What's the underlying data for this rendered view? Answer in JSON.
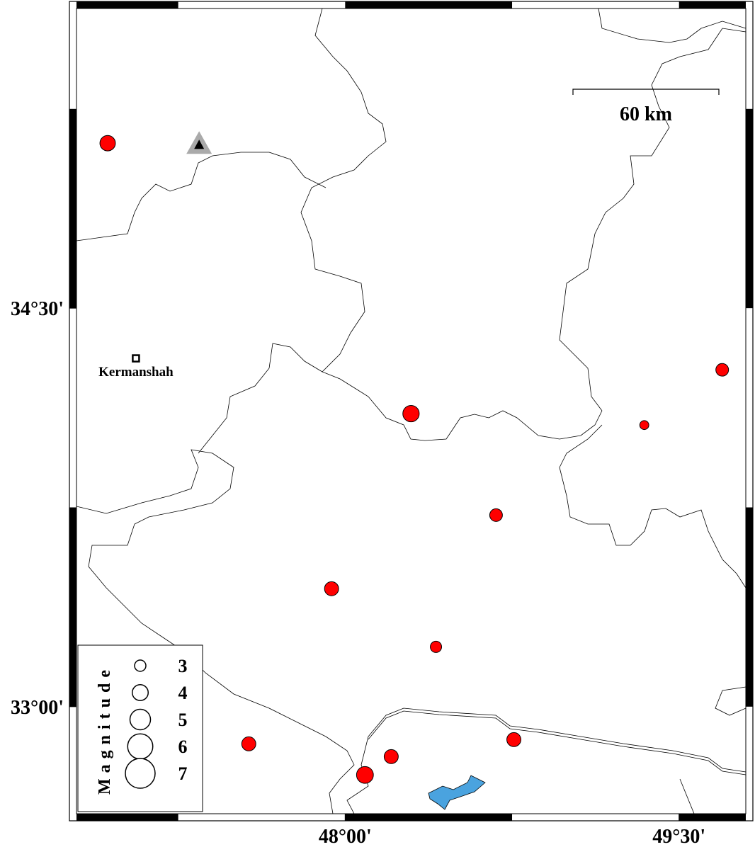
{
  "map": {
    "lon_range": [
      46.793,
      49.8
    ],
    "lat_range": [
      32.597,
      35.628
    ],
    "lon_ticks": [
      {
        "value": 48.0,
        "label": "48°00'"
      },
      {
        "value": 49.5,
        "label": "49°30'"
      }
    ],
    "lat_ticks": [
      {
        "value": 34.5,
        "label": "34°30'"
      },
      {
        "value": 33.0,
        "label": "33°00'"
      }
    ],
    "scale_bar": "60 km",
    "city": {
      "name": "Kermanshah",
      "lon": 47.06,
      "lat": 34.311
    },
    "station": {
      "lon": 47.344,
      "lat": 35.113
    },
    "event_color": "#ff0000",
    "events": [
      {
        "lon": 46.933,
        "lat": 35.121,
        "magnitude": 3.9
      },
      {
        "lon": 48.296,
        "lat": 34.103,
        "magnitude": 4.1
      },
      {
        "lon": 49.694,
        "lat": 34.268,
        "magnitude": 3.3
      },
      {
        "lon": 49.344,
        "lat": 34.06,
        "magnitude": 2.5
      },
      {
        "lon": 48.678,
        "lat": 33.721,
        "magnitude": 3.3
      },
      {
        "lon": 47.939,
        "lat": 33.444,
        "magnitude": 3.6
      },
      {
        "lon": 48.408,
        "lat": 33.225,
        "magnitude": 3.0
      },
      {
        "lon": 47.567,
        "lat": 32.86,
        "magnitude": 3.6
      },
      {
        "lon": 48.207,
        "lat": 32.812,
        "magnitude": 3.6
      },
      {
        "lon": 48.089,
        "lat": 32.743,
        "magnitude": 4.2
      },
      {
        "lon": 48.758,
        "lat": 32.876,
        "magnitude": 3.6
      }
    ],
    "legend": {
      "title": "Magnitude",
      "magnitudes": [
        3,
        4,
        5,
        6,
        7
      ]
    }
  }
}
